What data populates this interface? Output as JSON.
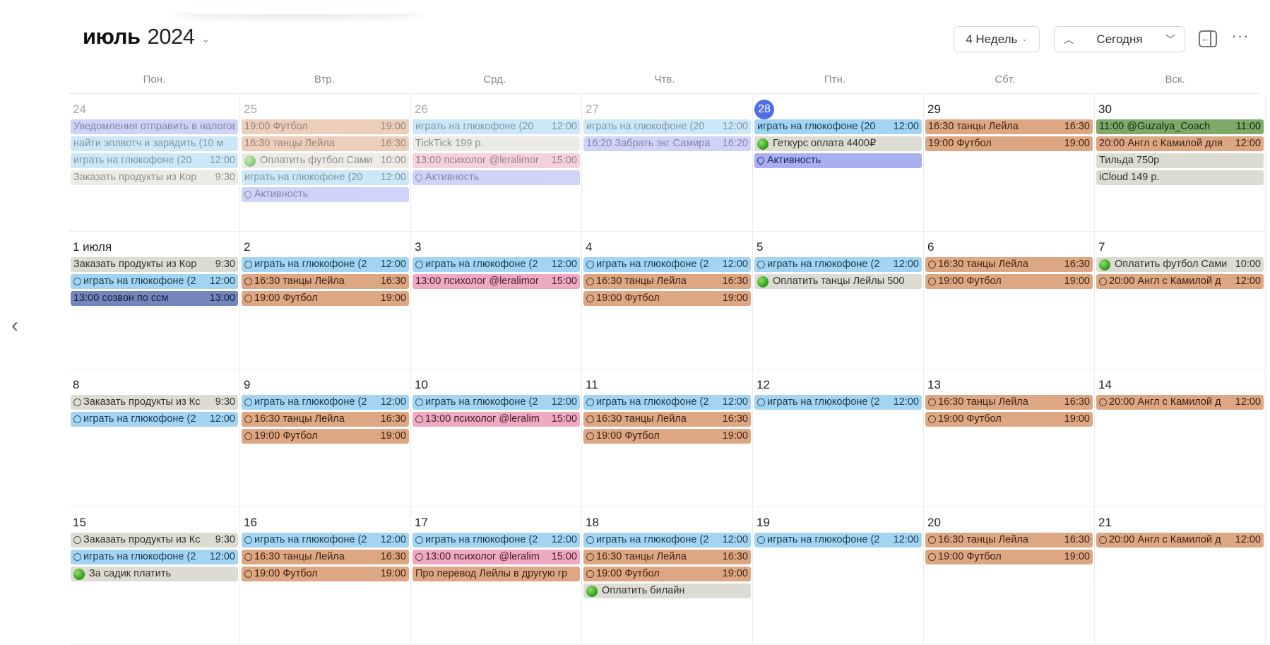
{
  "header": {
    "month": "июль",
    "year": "2024",
    "view_label": "4 Недель",
    "today_label": "Сегодня"
  },
  "icons": {
    "title_chevron": "chevron-down-icon",
    "prev": "chevron-up-icon",
    "next": "chevron-down-icon",
    "sidebar": "sidebar-collapse-icon",
    "more": "ellipsis-icon",
    "back": "chevron-left-icon"
  },
  "weekdays": [
    "Пон.",
    "Втр.",
    "Срд.",
    "Чтв.",
    "Птн.",
    "Сбт.",
    "Вск."
  ],
  "colors": {
    "today": "#4f6fe3",
    "blue": "#a3d5f2",
    "orange": "#dea783",
    "pink": "#eeaac3",
    "grey": "#dddcd3",
    "purple": "#a9b0f2",
    "navy": "#7387bd",
    "green": "#7fa86b"
  },
  "weeks": [
    [
      {
        "num": "24",
        "past": true,
        "events": [
          {
            "title": "Уведомления отправить в налоговую",
            "time": "",
            "color": "purple",
            "icon": ""
          },
          {
            "title": "найти эплвотч и зарядить (10 м",
            "time": "",
            "color": "blue",
            "icon": ""
          },
          {
            "title": "играть на глюкофоне (20",
            "time": "12:00",
            "color": "blue",
            "icon": ""
          },
          {
            "title": "Заказать продукты из Кор",
            "time": "9:30",
            "color": "grey",
            "icon": ""
          }
        ]
      },
      {
        "num": "25",
        "past": true,
        "events": [
          {
            "title": "19:00 Футбол",
            "time": "19:00",
            "color": "orange",
            "icon": ""
          },
          {
            "title": "16:30 танцы Лейла",
            "time": "16:30",
            "color": "orange",
            "icon": ""
          },
          {
            "title": "Оплатить футбол Сами",
            "time": "10:00",
            "color": "grey",
            "icon": "dot"
          },
          {
            "title": "играть на глюкофоне (20",
            "time": "12:00",
            "color": "blue",
            "icon": ""
          },
          {
            "title": "Активность",
            "time": "",
            "color": "purple",
            "icon": "pin"
          }
        ]
      },
      {
        "num": "26",
        "past": true,
        "events": [
          {
            "title": "играть на глюкофоне (20",
            "time": "12:00",
            "color": "blue",
            "icon": ""
          },
          {
            "title": "TickTick 199 р.",
            "time": "",
            "color": "grey",
            "icon": ""
          },
          {
            "title": "13:00 психолог @leralimor",
            "time": "15:00",
            "color": "pink",
            "icon": ""
          },
          {
            "title": "Активность",
            "time": "",
            "color": "purple",
            "icon": "pin"
          }
        ]
      },
      {
        "num": "27",
        "past": true,
        "events": [
          {
            "title": "играть на глюкофоне (20",
            "time": "12:00",
            "color": "blue",
            "icon": ""
          },
          {
            "title": "16:20 Забрать экг Самира",
            "time": "16:20",
            "color": "purple",
            "icon": ""
          }
        ]
      },
      {
        "num": "28",
        "today": true,
        "events": [
          {
            "title": "играть на глюкофоне (20",
            "time": "12:00",
            "color": "blue",
            "icon": ""
          },
          {
            "title": "Геткурс оплата 4400₽",
            "time": "",
            "color": "grey",
            "icon": "dot"
          },
          {
            "title": "Активность",
            "time": "",
            "color": "purple",
            "icon": "pin"
          }
        ]
      },
      {
        "num": "29",
        "events": [
          {
            "title": "16:30 танцы Лейла",
            "time": "16:30",
            "color": "orange",
            "icon": ""
          },
          {
            "title": "19:00 Футбол",
            "time": "19:00",
            "color": "orange",
            "icon": ""
          }
        ]
      },
      {
        "num": "30",
        "events": [
          {
            "title": "11:00 @Guzalya_Coach",
            "time": "11:00",
            "color": "green",
            "icon": ""
          },
          {
            "title": "20:00 Англ с Камилой для",
            "time": "12:00",
            "color": "orange",
            "icon": ""
          },
          {
            "title": "Тильда 750р",
            "time": "",
            "color": "grey",
            "icon": ""
          },
          {
            "title": "iCloud 149 р.",
            "time": "",
            "color": "grey",
            "icon": ""
          }
        ]
      }
    ],
    [
      {
        "num": "1 июля",
        "events": [
          {
            "title": "Заказать продукты из Кор",
            "time": "9:30",
            "color": "grey",
            "icon": ""
          },
          {
            "title": "играть на глюкофоне (2",
            "time": "12:00",
            "color": "blue",
            "icon": "circle"
          },
          {
            "title": "13:00 созвон по ссм",
            "time": "13:00",
            "color": "navy",
            "icon": ""
          }
        ]
      },
      {
        "num": "2",
        "events": [
          {
            "title": "играть на глюкофоне (2",
            "time": "12:00",
            "color": "blue",
            "icon": "circle"
          },
          {
            "title": "16:30 танцы Лейла",
            "time": "16:30",
            "color": "orange",
            "icon": "circle"
          },
          {
            "title": "19:00 Футбол",
            "time": "19:00",
            "color": "orange",
            "icon": "circle"
          }
        ]
      },
      {
        "num": "3",
        "events": [
          {
            "title": "играть на глюкофоне (2",
            "time": "12:00",
            "color": "blue",
            "icon": "circle"
          },
          {
            "title": "13:00 психолог @leralimor",
            "time": "15:00",
            "color": "pink",
            "icon": ""
          }
        ]
      },
      {
        "num": "4",
        "events": [
          {
            "title": "играть на глюкофоне (2",
            "time": "12:00",
            "color": "blue",
            "icon": "circle"
          },
          {
            "title": "16:30 танцы Лейла",
            "time": "16:30",
            "color": "orange",
            "icon": "circle"
          },
          {
            "title": "19:00 Футбол",
            "time": "19:00",
            "color": "orange",
            "icon": "circle"
          }
        ]
      },
      {
        "num": "5",
        "events": [
          {
            "title": "играть на глюкофоне (2",
            "time": "12:00",
            "color": "blue",
            "icon": "circle"
          },
          {
            "title": "Оплатить танцы Лейлы 500",
            "time": "",
            "color": "grey",
            "icon": "dot"
          }
        ]
      },
      {
        "num": "6",
        "events": [
          {
            "title": "16:30 танцы Лейла",
            "time": "16:30",
            "color": "orange",
            "icon": "circle"
          },
          {
            "title": "19:00 Футбол",
            "time": "19:00",
            "color": "orange",
            "icon": "circle"
          }
        ]
      },
      {
        "num": "7",
        "events": [
          {
            "title": "Оплатить футбол Сами",
            "time": "10:00",
            "color": "grey",
            "icon": "dot"
          },
          {
            "title": "20:00 Англ с Камилой д",
            "time": "12:00",
            "color": "orange",
            "icon": "circle"
          }
        ]
      }
    ],
    [
      {
        "num": "8",
        "events": [
          {
            "title": "Заказать продукты из Кс",
            "time": "9:30",
            "color": "grey",
            "icon": "circle"
          },
          {
            "title": "играть на глюкофоне (2",
            "time": "12:00",
            "color": "blue",
            "icon": "circle"
          }
        ]
      },
      {
        "num": "9",
        "events": [
          {
            "title": "играть на глюкофоне (2",
            "time": "12:00",
            "color": "blue",
            "icon": "circle"
          },
          {
            "title": "16:30 танцы Лейла",
            "time": "16:30",
            "color": "orange",
            "icon": "circle"
          },
          {
            "title": "19:00 Футбол",
            "time": "19:00",
            "color": "orange",
            "icon": "circle"
          }
        ]
      },
      {
        "num": "10",
        "events": [
          {
            "title": "играть на глюкофоне (2",
            "time": "12:00",
            "color": "blue",
            "icon": "circle"
          },
          {
            "title": "13:00 психолог @leralim",
            "time": "15:00",
            "color": "pink",
            "icon": "circle"
          }
        ]
      },
      {
        "num": "11",
        "events": [
          {
            "title": "играть на глюкофоне (2",
            "time": "12:00",
            "color": "blue",
            "icon": "circle"
          },
          {
            "title": "16:30 танцы Лейла",
            "time": "16:30",
            "color": "orange",
            "icon": "circle"
          },
          {
            "title": "19:00 Футбол",
            "time": "19:00",
            "color": "orange",
            "icon": "circle"
          }
        ]
      },
      {
        "num": "12",
        "events": [
          {
            "title": "играть на глюкофоне (2",
            "time": "12:00",
            "color": "blue",
            "icon": "circle"
          }
        ]
      },
      {
        "num": "13",
        "events": [
          {
            "title": "16:30 танцы Лейла",
            "time": "16:30",
            "color": "orange",
            "icon": "circle"
          },
          {
            "title": "19:00 Футбол",
            "time": "19:00",
            "color": "orange",
            "icon": "circle"
          }
        ]
      },
      {
        "num": "14",
        "events": [
          {
            "title": "20:00 Англ с Камилой д",
            "time": "12:00",
            "color": "orange",
            "icon": "circle"
          }
        ]
      }
    ],
    [
      {
        "num": "15",
        "events": [
          {
            "title": "Заказать продукты из Кс",
            "time": "9:30",
            "color": "grey",
            "icon": "circle"
          },
          {
            "title": "играть на глюкофоне (2",
            "time": "12:00",
            "color": "blue",
            "icon": "circle"
          },
          {
            "title": "За садик платить",
            "time": "",
            "color": "grey",
            "icon": "dot"
          }
        ]
      },
      {
        "num": "16",
        "events": [
          {
            "title": "играть на глюкофоне (2",
            "time": "12:00",
            "color": "blue",
            "icon": "circle"
          },
          {
            "title": "16:30 танцы Лейла",
            "time": "16:30",
            "color": "orange",
            "icon": "circle"
          },
          {
            "title": "19:00 Футбол",
            "time": "19:00",
            "color": "orange",
            "icon": "circle"
          }
        ]
      },
      {
        "num": "17",
        "events": [
          {
            "title": "играть на глюкофоне (2",
            "time": "12:00",
            "color": "blue",
            "icon": "circle"
          },
          {
            "title": "13:00 психолог @leralim",
            "time": "15:00",
            "color": "pink",
            "icon": "circle"
          },
          {
            "title": "Про перевод Лейлы в другую гр",
            "time": "",
            "color": "orange",
            "icon": ""
          }
        ]
      },
      {
        "num": "18",
        "events": [
          {
            "title": "играть на глюкофоне (2",
            "time": "12:00",
            "color": "blue",
            "icon": "circle"
          },
          {
            "title": "16:30 танцы Лейла",
            "time": "16:30",
            "color": "orange",
            "icon": "circle"
          },
          {
            "title": "19:00 Футбол",
            "time": "19:00",
            "color": "orange",
            "icon": "circle"
          },
          {
            "title": "Оплатить билайн",
            "time": "",
            "color": "grey",
            "icon": "dot"
          }
        ]
      },
      {
        "num": "19",
        "events": [
          {
            "title": "играть на глюкофоне (2",
            "time": "12:00",
            "color": "blue",
            "icon": "circle"
          }
        ]
      },
      {
        "num": "20",
        "events": [
          {
            "title": "16:30 танцы Лейла",
            "time": "16:30",
            "color": "orange",
            "icon": "circle"
          },
          {
            "title": "19:00 Футбол",
            "time": "19:00",
            "color": "orange",
            "icon": "circle"
          }
        ]
      },
      {
        "num": "21",
        "events": [
          {
            "title": "20:00 Англ с Камилой д",
            "time": "12:00",
            "color": "orange",
            "icon": "circle"
          }
        ]
      }
    ]
  ]
}
